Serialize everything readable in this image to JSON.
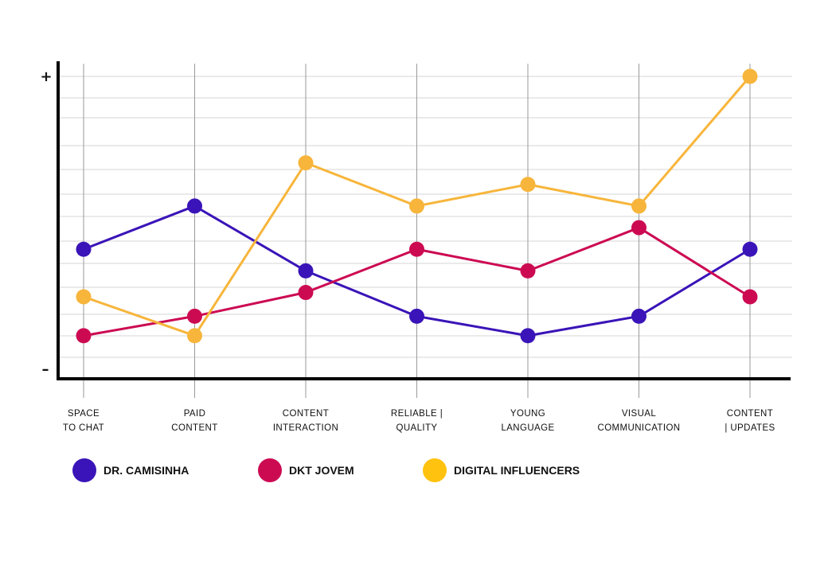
{
  "chart_data": {
    "type": "line",
    "categories": [
      [
        "SPACE",
        "TO CHAT"
      ],
      [
        "PAID",
        "CONTENT"
      ],
      [
        "CONTENT",
        "INTERACTION"
      ],
      [
        "RELIABLE |",
        "QUALITY"
      ],
      [
        "YOUNG",
        "LANGUAGE"
      ],
      [
        "VISUAL",
        "COMMUNICATION"
      ],
      [
        "CONTENT",
        "| UPDATES"
      ]
    ],
    "y_max_label": "+",
    "y_min_label": "–",
    "ylim": [
      0,
      13
    ],
    "grid": true,
    "legend_position": "bottom-left",
    "series": [
      {
        "name": "DR. CAMISINHA",
        "color": "#3a14b8",
        "legend_color": "#3a14b8",
        "values": [
          5,
          7,
          4,
          1.9,
          1,
          1.9,
          5
        ]
      },
      {
        "name": "DKT JOVEM",
        "color": "#cc0a52",
        "legend_color": "#cc0a52",
        "values": [
          1,
          1.9,
          3,
          5,
          4,
          6,
          2.8
        ]
      },
      {
        "name": "DIGITAL INFLUENCERS",
        "color": "#f7b53b",
        "legend_color": "#ffc20e",
        "values": [
          2.8,
          1,
          9,
          7,
          8,
          7,
          13
        ]
      }
    ]
  }
}
